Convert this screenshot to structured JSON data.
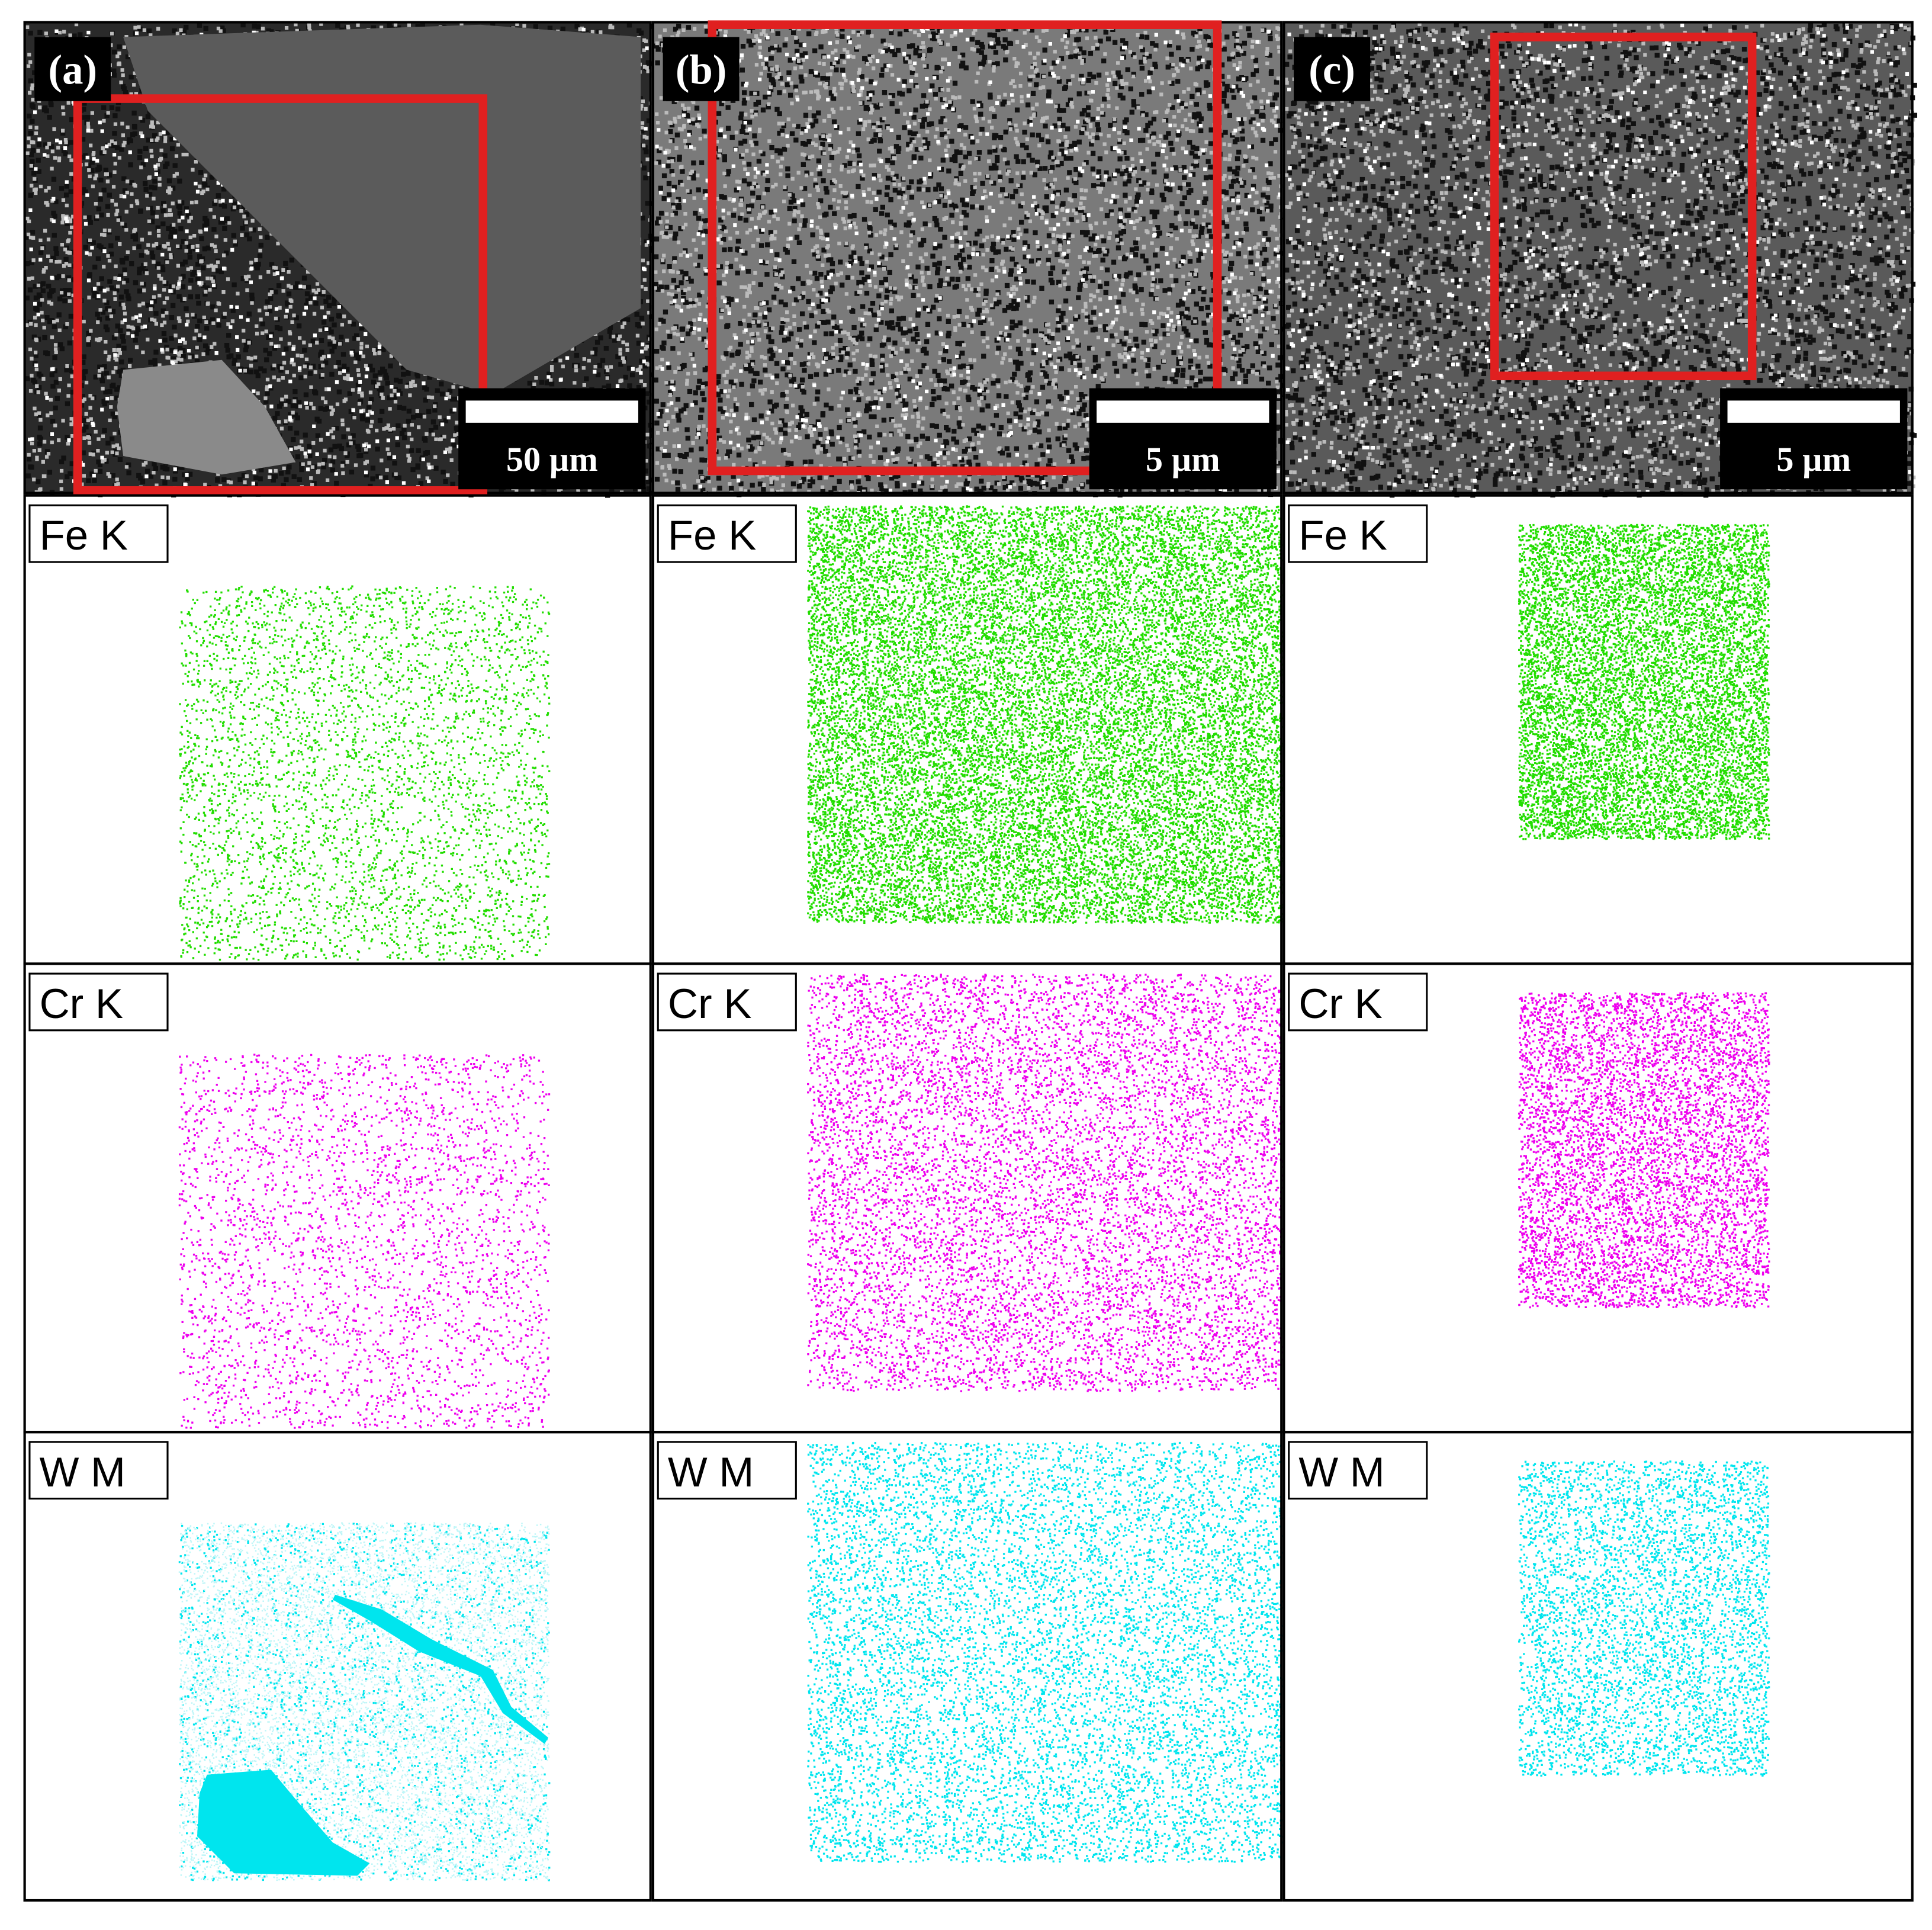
{
  "panels": [
    {
      "label": "(a)",
      "scale_bar": "50 µm",
      "maps": [
        "Fe K",
        "Cr K",
        "W M"
      ]
    },
    {
      "label": "(b)",
      "scale_bar": "5 µm",
      "maps": [
        "Fe K",
        "Cr K",
        "W M"
      ]
    },
    {
      "label": "(c)",
      "scale_bar": "5 µm",
      "maps": [
        "Fe K",
        "Cr K",
        "W M"
      ]
    }
  ]
}
